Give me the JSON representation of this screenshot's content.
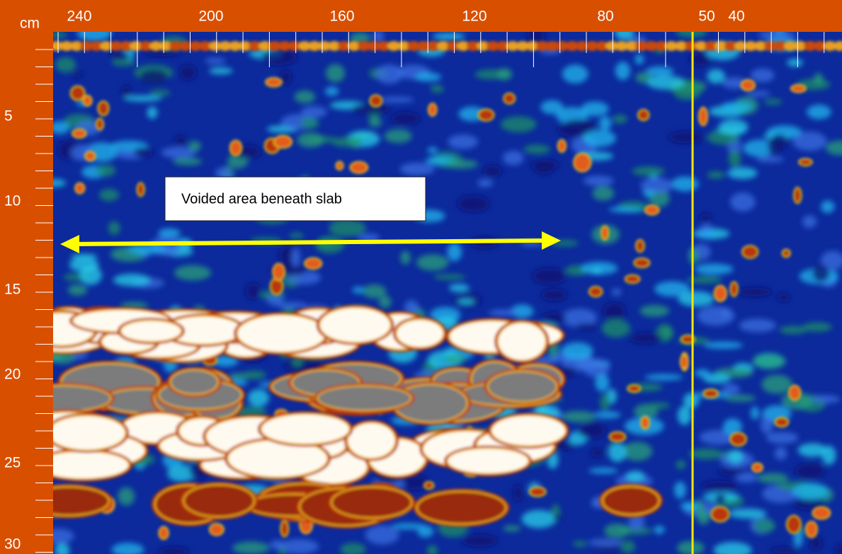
{
  "axes": {
    "unit": "cm",
    "top_labels": [
      "240",
      "200",
      "160",
      "120",
      "80",
      "50",
      "40"
    ],
    "left_labels": [
      "5",
      "10",
      "15",
      "20",
      "25",
      "30"
    ]
  },
  "annotation": "Voided area beneath slab"
}
